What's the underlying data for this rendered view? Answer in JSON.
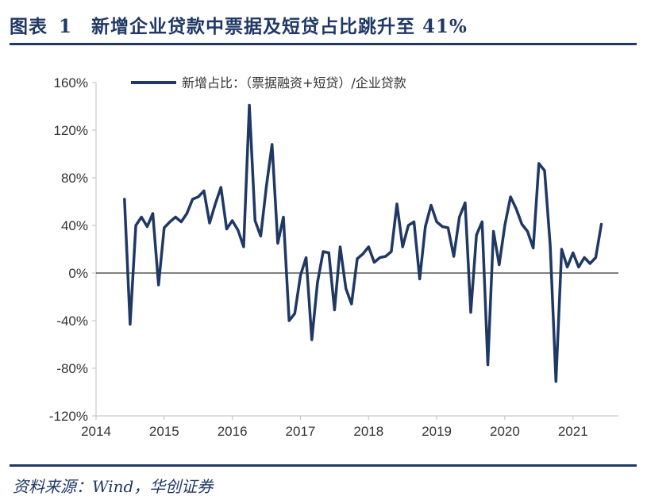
{
  "figure": {
    "label": "图表",
    "number": "1",
    "title": "新增企业贷款中票据及短贷占比跳升至 41%"
  },
  "source": "资料来源：Wind，华创证券",
  "colors": {
    "series": "#1f3864",
    "accent": "#1f3864",
    "axis": "#bfbfbf"
  },
  "chart_data": {
    "type": "line",
    "title": "新增企业贷款中票据及短贷占比跳升至 41%",
    "xlabel": "",
    "ylabel": "",
    "xlim": [
      2014.0,
      2021.667
    ],
    "ylim": [
      -120,
      160
    ],
    "yticks": [
      "-120%",
      "-80%",
      "-40%",
      "0%",
      "40%",
      "80%",
      "120%",
      "160%"
    ],
    "ytick_values": [
      -120,
      -80,
      -40,
      0,
      40,
      80,
      120,
      160
    ],
    "xticks": [
      "2014",
      "2015",
      "2016",
      "2017",
      "2018",
      "2019",
      "2020",
      "2021"
    ],
    "xtick_values": [
      2014,
      2015,
      2016,
      2017,
      2018,
      2019,
      2020,
      2021
    ],
    "legend": "top-left",
    "series": [
      {
        "name": "新增占比：（票据融资+短贷）/企业贷款",
        "start": "2014-06",
        "x_step_months": 1,
        "values": [
          62,
          -43,
          40,
          47,
          39,
          50,
          -10,
          38,
          43,
          47,
          43,
          50,
          62,
          64,
          69,
          42,
          58,
          72,
          37,
          44,
          36,
          22,
          141,
          44,
          31,
          73,
          108,
          25,
          47,
          -40,
          -34,
          -2,
          13,
          -56,
          -8,
          18,
          17,
          -31,
          22,
          -13,
          -26,
          12,
          16,
          22,
          9,
          13,
          14,
          18,
          58,
          22,
          40,
          43,
          -5,
          39,
          57,
          43,
          39,
          38,
          14,
          47,
          59,
          -33,
          32,
          43,
          -77,
          35,
          7,
          40,
          64,
          54,
          41,
          35,
          21,
          92,
          86,
          23,
          -91,
          20,
          5,
          17,
          5,
          13,
          8,
          13,
          41
        ]
      }
    ]
  }
}
